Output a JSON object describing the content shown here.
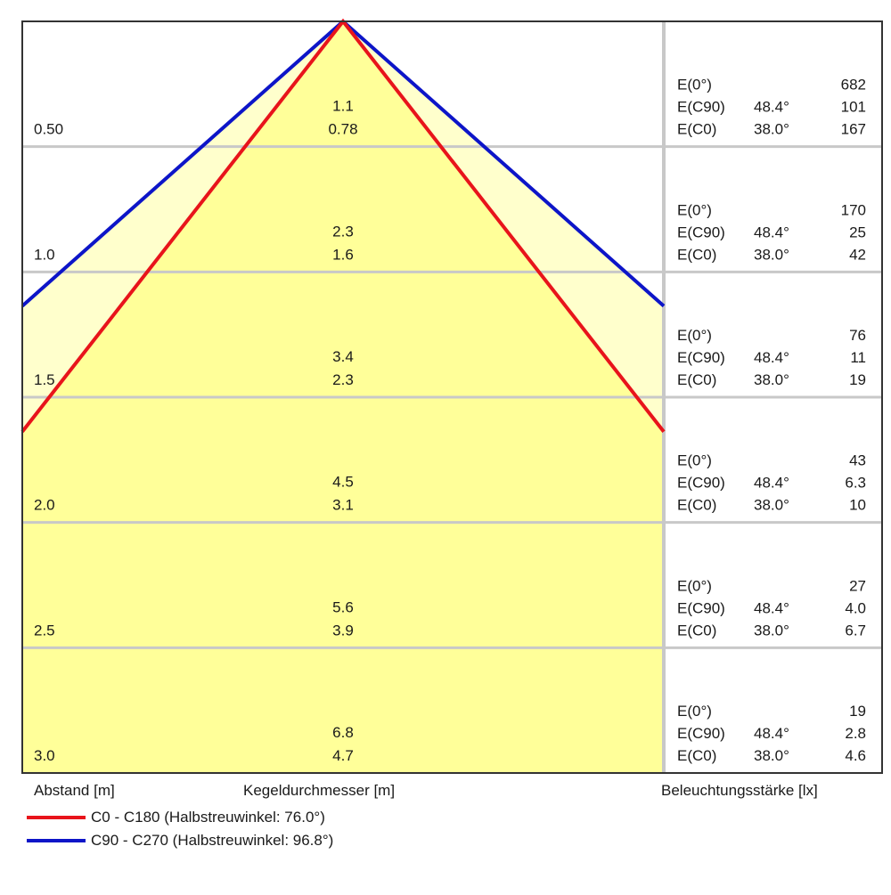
{
  "chart_data": {
    "type": "light-cone-diagram",
    "rows": [
      {
        "distance": "0.50",
        "diam_c0": "0.78",
        "diam_c90": "1.1",
        "e0": "682",
        "ec90": "101",
        "ec0": "167"
      },
      {
        "distance": "1.0",
        "diam_c0": "1.6",
        "diam_c90": "2.3",
        "e0": "170",
        "ec90": "25",
        "ec0": "42"
      },
      {
        "distance": "1.5",
        "diam_c0": "2.3",
        "diam_c90": "3.4",
        "e0": "76",
        "ec90": "11",
        "ec0": "19"
      },
      {
        "distance": "2.0",
        "diam_c0": "3.1",
        "diam_c90": "4.5",
        "e0": "43",
        "ec90": "6.3",
        "ec0": "10"
      },
      {
        "distance": "2.5",
        "diam_c0": "3.9",
        "diam_c90": "5.6",
        "e0": "27",
        "ec90": "4.0",
        "ec0": "6.7"
      },
      {
        "distance": "3.0",
        "diam_c0": "4.7",
        "diam_c90": "6.8",
        "e0": "19",
        "ec90": "2.8",
        "ec0": "4.6"
      }
    ],
    "labels": {
      "e0": "E(0°)",
      "ec90": "E(C90)",
      "ec0": "E(C0)"
    },
    "angles": {
      "c90": "48.4°",
      "c0": "38.0°"
    },
    "xlabel_left": "Abstand [m]",
    "xlabel_center": "Kegeldurchmesser [m]",
    "xlabel_right": "Beleuchtungsstärke [lx]",
    "series": [
      {
        "name": "C0 - C180 (Halbstreuwinkel: 76.0°)",
        "color": "#e8141b",
        "half_angle_deg": 76.0
      },
      {
        "name": "C90 - C270 (Halbstreuwinkel: 96.8°)",
        "color": "#0d15c8",
        "half_angle_deg": 96.8
      }
    ],
    "colors": {
      "fill_inner": "#ffff99",
      "fill_outer": "#ffffcc",
      "grid": "#c8c8c8",
      "border": "#333333"
    }
  }
}
